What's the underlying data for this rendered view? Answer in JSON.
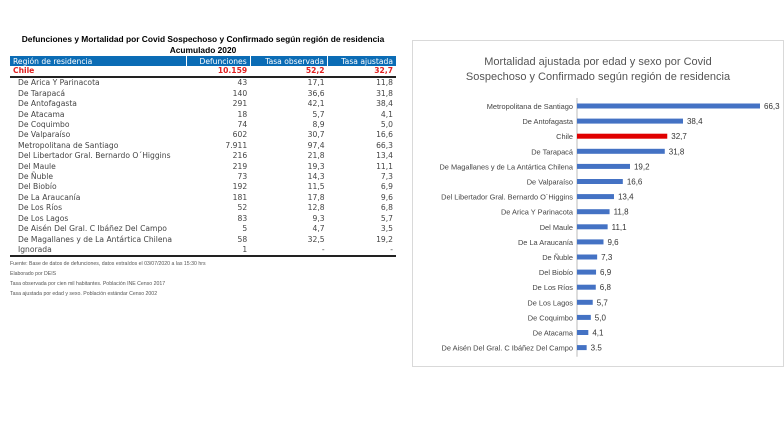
{
  "table": {
    "title": "Defunciones y Mortalidad por Covid Sospechoso y Confirmado  según región de residencia",
    "subtitle": "Acumulado 2020",
    "headers": [
      "Región de residencia",
      "Defunciones",
      "Tasa observada",
      "Tasa ajustada"
    ],
    "total": [
      "Chile",
      "10.159",
      "52,2",
      "32,7"
    ],
    "rows": [
      [
        "De Arica Y Parinacota",
        "43",
        "17,1",
        "11,8"
      ],
      [
        "De Tarapacá",
        "140",
        "36,6",
        "31,8"
      ],
      [
        "De Antofagasta",
        "291",
        "42,1",
        "38,4"
      ],
      [
        "De Atacama",
        "18",
        "5,7",
        "4,1"
      ],
      [
        "De Coquimbo",
        "74",
        "8,9",
        "5,0"
      ],
      [
        "De Valparaíso",
        "602",
        "30,7",
        "16,6"
      ],
      [
        "Metropolitana de Santiago",
        "7.911",
        "97,4",
        "66,3"
      ],
      [
        "Del Libertador Gral. Bernardo O´Higgins",
        "216",
        "21,8",
        "13,4"
      ],
      [
        "Del Maule",
        "219",
        "19,3",
        "11,1"
      ],
      [
        "De Ñuble",
        "73",
        "14,3",
        "7,3"
      ],
      [
        "Del Biobío",
        "192",
        "11,5",
        "6,9"
      ],
      [
        "De La Araucanía",
        "181",
        "17,8",
        "9,6"
      ],
      [
        "De Los Ríos",
        "52",
        "12,8",
        "6,8"
      ],
      [
        "De Los Lagos",
        "83",
        "9,3",
        "5,7"
      ],
      [
        "De Aisén Del Gral. C Ibáñez Del Campo",
        "5",
        "4,7",
        "3,5"
      ],
      [
        "De Magallanes y de La Antártica Chilena",
        "58",
        "32,5",
        "19,2"
      ],
      [
        "Ignorada",
        "1",
        "-",
        "-"
      ]
    ],
    "notes": [
      "Fuente: Base de datos de defunciones, datos extraídos el 03/07/2020 a las 15:30 hrs",
      "Elaborado por DEIS",
      "Tasa observada por cien mil habitantes. Población INE Censo 2017",
      "Tasa ajustada por edad y sexo. Población estándar Censo 2002"
    ]
  },
  "chart_data": {
    "type": "bar",
    "orientation": "horizontal",
    "title": "Mortalidad ajustada por edad y sexo por Covid Sospechoso y Confirmado  según región de residencia",
    "title_lines": [
      "Mortalidad ajustada por edad y sexo por Covid",
      "Sospechoso y Confirmado  según región de residencia"
    ],
    "categories": [
      "Metropolitana de Santiago",
      "De Antofagasta",
      "Chile",
      "De Tarapacá",
      "De Magallanes y de La Antártica Chilena",
      "De Valparaíso",
      "Del Libertador Gral. Bernardo O´Higgins",
      "De Arica Y Parinacota",
      "Del Maule",
      "De La Araucanía",
      "De Ñuble",
      "Del Biobío",
      "De Los Ríos",
      "De Los Lagos",
      "De Coquimbo",
      "De Atacama",
      "De Aisén Del Gral. C Ibáñez Del Campo"
    ],
    "values": [
      66.3,
      38.4,
      32.7,
      31.8,
      19.2,
      16.6,
      13.4,
      11.8,
      11.1,
      9.6,
      7.3,
      6.9,
      6.8,
      5.7,
      5.0,
      4.1,
      3.5
    ],
    "labels": [
      "66,3",
      "38,4",
      "32,7",
      "31,8",
      "19,2",
      "16,6",
      "13,4",
      "11,8",
      "11,1",
      "9,6",
      "7,3",
      "6,9",
      "6,8",
      "5,7",
      "5,0",
      "4,1",
      "3.5"
    ],
    "highlight": "Chile",
    "colors": {
      "bar": "#4472c4",
      "highlight": "#e00000"
    },
    "xlim": [
      0,
      70
    ]
  }
}
